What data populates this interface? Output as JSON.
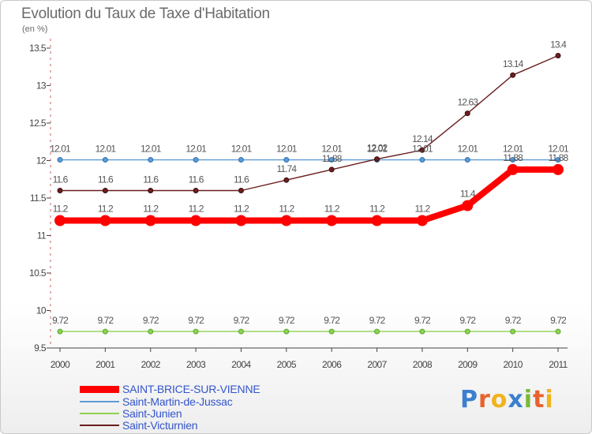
{
  "title": "Evolution du Taux de Taxe d'Habitation",
  "subtitle": "(en %)",
  "logo_letters": [
    {
      "ch": "P",
      "color": "#3a7fd0"
    },
    {
      "ch": "r",
      "color": "#e8622c"
    },
    {
      "ch": "o",
      "color": "#f2b21b"
    },
    {
      "ch": "x",
      "color": "#3a7fd0"
    },
    {
      "ch": "i",
      "color": "#7ab83a"
    },
    {
      "ch": "t",
      "color": "#e8622c"
    },
    {
      "ch": "i",
      "color": "#f2b21b"
    }
  ],
  "chart_data": {
    "type": "line",
    "x": [
      "2000",
      "2001",
      "2002",
      "2003",
      "2004",
      "2005",
      "2006",
      "2007",
      "2008",
      "2009",
      "2010",
      "2011"
    ],
    "ylim": [
      9.5,
      13.5
    ],
    "yticks": [
      "9.5",
      "10",
      "10.5",
      "11",
      "11.5",
      "12",
      "12.5",
      "13",
      "13.5"
    ],
    "grid": false,
    "legend_position": "bottom-left",
    "series": [
      {
        "name": "SAINT-BRICE-SUR-VIENNE",
        "color": "#ff0000",
        "values": [
          11.2,
          11.2,
          11.2,
          11.2,
          11.2,
          11.2,
          11.2,
          11.2,
          11.2,
          11.4,
          11.88,
          11.88
        ],
        "labels": [
          "11.2",
          "11.2",
          "11.2",
          "11.2",
          "11.2",
          "11.2",
          "11.2",
          "11.2",
          "11.2",
          "11.4",
          "11.88",
          "11.88"
        ]
      },
      {
        "name": "Saint-Martin-de-Jussac",
        "color": "#5b9bd5",
        "values": [
          12.01,
          12.01,
          12.01,
          12.01,
          12.01,
          12.01,
          12.01,
          12.01,
          12.01,
          12.01,
          12.01,
          12.01
        ],
        "labels": [
          "12.01",
          "12.01",
          "12.01",
          "12.01",
          "12.01",
          "12.01",
          "12.01",
          "12.01",
          "12.01",
          "12.01",
          "12.01",
          "12.01"
        ]
      },
      {
        "name": "Saint-Junien",
        "color": "#8fd24f",
        "values": [
          9.72,
          9.72,
          9.72,
          9.72,
          9.72,
          9.72,
          9.72,
          9.72,
          9.72,
          9.72,
          9.72,
          9.72
        ],
        "labels": [
          "9.72",
          "9.72",
          "9.72",
          "9.72",
          "9.72",
          "9.72",
          "9.72",
          "9.72",
          "9.72",
          "9.72",
          "9.72",
          "9.72"
        ]
      },
      {
        "name": "Saint-Victurnien",
        "color": "#6b1f1f",
        "values": [
          11.6,
          11.6,
          11.6,
          11.6,
          11.6,
          11.74,
          11.88,
          12.02,
          12.14,
          12.63,
          13.14,
          13.4
        ],
        "labels": [
          "11.6",
          "11.6",
          "11.6",
          "11.6",
          "11.6",
          "11.74",
          "11.88",
          "12.02",
          "12.14",
          "12.63",
          "13.14",
          "13.4"
        ]
      }
    ]
  }
}
